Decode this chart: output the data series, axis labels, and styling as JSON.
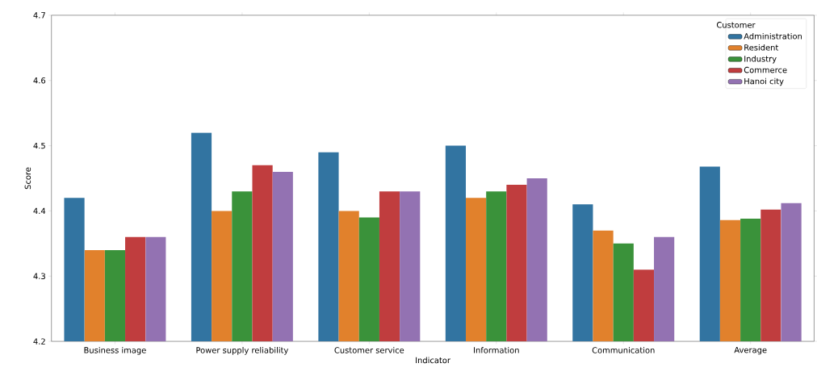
{
  "chart_data": {
    "type": "bar",
    "xlabel": "Indicator",
    "ylabel": "Score",
    "legend_title": "Customer",
    "legend": "top right",
    "grid": false,
    "categories": [
      "Business image",
      "Power supply reliability",
      "Customer service",
      "Information",
      "Communication",
      "Average"
    ],
    "ylim": [
      4.2,
      4.7
    ],
    "yticks": [
      4.2,
      4.3,
      4.4,
      4.5,
      4.6,
      4.7
    ],
    "series": [
      {
        "name": "Administration",
        "color": "#3274a1",
        "values": [
          4.42,
          4.52,
          4.49,
          4.5,
          4.41,
          4.468
        ]
      },
      {
        "name": "Resident",
        "color": "#e1812c",
        "values": [
          4.34,
          4.4,
          4.4,
          4.42,
          4.37,
          4.386
        ]
      },
      {
        "name": "Industry",
        "color": "#3a923a",
        "values": [
          4.34,
          4.43,
          4.39,
          4.43,
          4.35,
          4.388
        ]
      },
      {
        "name": "Commerce",
        "color": "#c03d3e",
        "values": [
          4.36,
          4.47,
          4.43,
          4.44,
          4.31,
          4.402
        ]
      },
      {
        "name": "Hanoi city",
        "color": "#9372b2",
        "values": [
          4.36,
          4.46,
          4.43,
          4.45,
          4.36,
          4.412
        ]
      }
    ]
  }
}
